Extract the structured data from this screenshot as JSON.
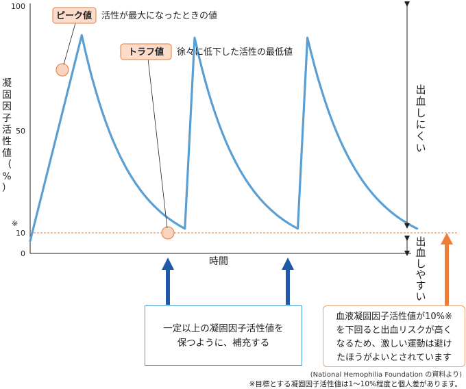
{
  "chart_data": {
    "type": "line",
    "ylabel": "凝固因子活性値（%）",
    "xlabel": "時間",
    "ylim": [
      0,
      100
    ],
    "yticks": [
      "0",
      "10",
      "50",
      "100"
    ],
    "threshold_marker": "※",
    "threshold_value": 10,
    "series": [
      {
        "values": [
          [
            0.0,
            5
          ],
          [
            0.08,
            88
          ],
          [
            0.24,
            10
          ],
          [
            0.255,
            87
          ],
          [
            0.415,
            10
          ],
          [
            0.43,
            87
          ],
          [
            0.6,
            10
          ]
        ],
        "decay": "exponential"
      }
    ],
    "peak_tag": "ピーク値",
    "peak_text": "活性が最大になったときの値",
    "trough_tag": "トラフ値",
    "trough_text": "徐々に低下した活性の最低値",
    "upper_zone_label": "出血しにくい",
    "lower_zone_label": "出血しやすい",
    "colors": {
      "line": "#5a9fd4",
      "threshold": "#e07a3a",
      "arrow_blue": "#1f5aa8",
      "arrow_orange": "#ee7d3a",
      "circle_fill": "#f7d3c0",
      "tag_fill": "#fbdccb"
    }
  },
  "boxes": {
    "blue_lines": [
      "一定以上の凝固因子活性値を",
      "保つように、補充する"
    ],
    "orange_lines": [
      "血液凝固因子活性値が10%※",
      "を下回ると出血リスクが高く",
      "なるため、激しい運動は避け",
      "たほうがよいとされています"
    ]
  },
  "source": "(National Hemophilia Foundation の資料より)",
  "footnote": "※目標とする凝固因子活性値は1〜10%程度と個人差があります。"
}
